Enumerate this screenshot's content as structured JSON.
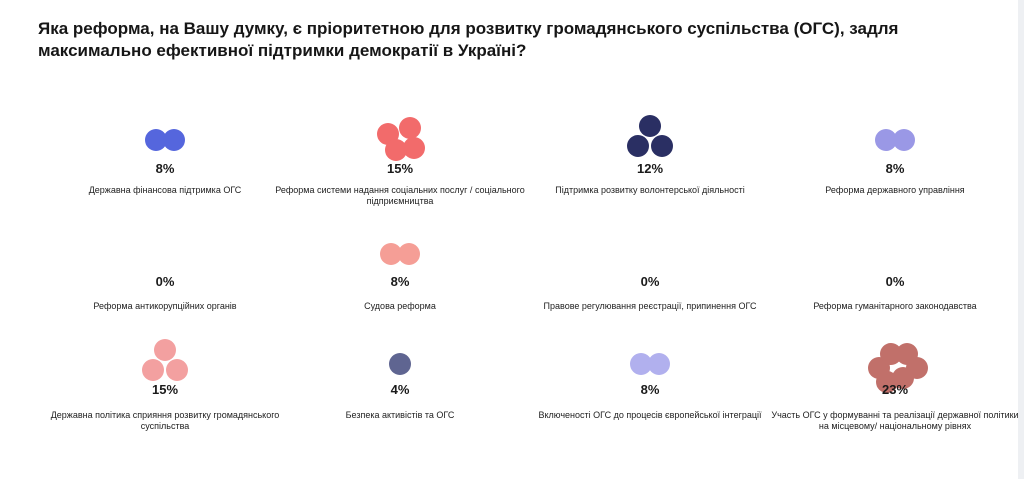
{
  "question": "Яка реформа, на Вашу думку, є пріоритетною для розвитку громадянського суспільства (ОГС), задля максимально ефективної підтримки демократії в Україні?",
  "chart_data": {
    "type": "bubble-grid",
    "items": [
      {
        "label": "Державна фінансова підтримка ОГС",
        "value": 8,
        "display": "8%",
        "color": "#5566dd",
        "bubbles": 2
      },
      {
        "label": "Реформа системи надання соціальних послуг / соціального підприємництва",
        "value": 15,
        "display": "15%",
        "color": "#f26b6b",
        "bubbles": 4
      },
      {
        "label": "Підтримка розвитку волонтерської діяльності",
        "value": 12,
        "display": "12%",
        "color": "#2a2f63",
        "bubbles": 3
      },
      {
        "label": "Реформа державного управління",
        "value": 8,
        "display": "8%",
        "color": "#9a98e6",
        "bubbles": 2
      },
      {
        "label": "Реформа антикорупційних органів",
        "value": 0,
        "display": "0%",
        "color": "#cccccc",
        "bubbles": 0
      },
      {
        "label": "Судова реформа",
        "value": 8,
        "display": "8%",
        "color": "#f59e96",
        "bubbles": 2
      },
      {
        "label": "Правове регулювання реєстрації, припинення ОГС",
        "value": 0,
        "display": "0%",
        "color": "#cccccc",
        "bubbles": 0
      },
      {
        "label": "Реформа гуманітарного законодавства",
        "value": 0,
        "display": "0%",
        "color": "#cccccc",
        "bubbles": 0
      },
      {
        "label": "Державна політика сприяння розвитку громадянського суспільства",
        "value": 15,
        "display": "15%",
        "color": "#f3a0a0",
        "bubbles": 3
      },
      {
        "label": "Безпека активістів та ОГС",
        "value": 4,
        "display": "4%",
        "color": "#5f6591",
        "bubbles": 1
      },
      {
        "label": "Включеності ОГС до процесів європейської інтеграції",
        "value": 8,
        "display": "8%",
        "color": "#b1b0ee",
        "bubbles": 2
      },
      {
        "label": "Участь ОГС у формуванні та реалізації державної політики на місцевому/ національному рівнях",
        "value": 23,
        "display": "23%",
        "color": "#c1706a",
        "bubbles": 6
      }
    ]
  }
}
